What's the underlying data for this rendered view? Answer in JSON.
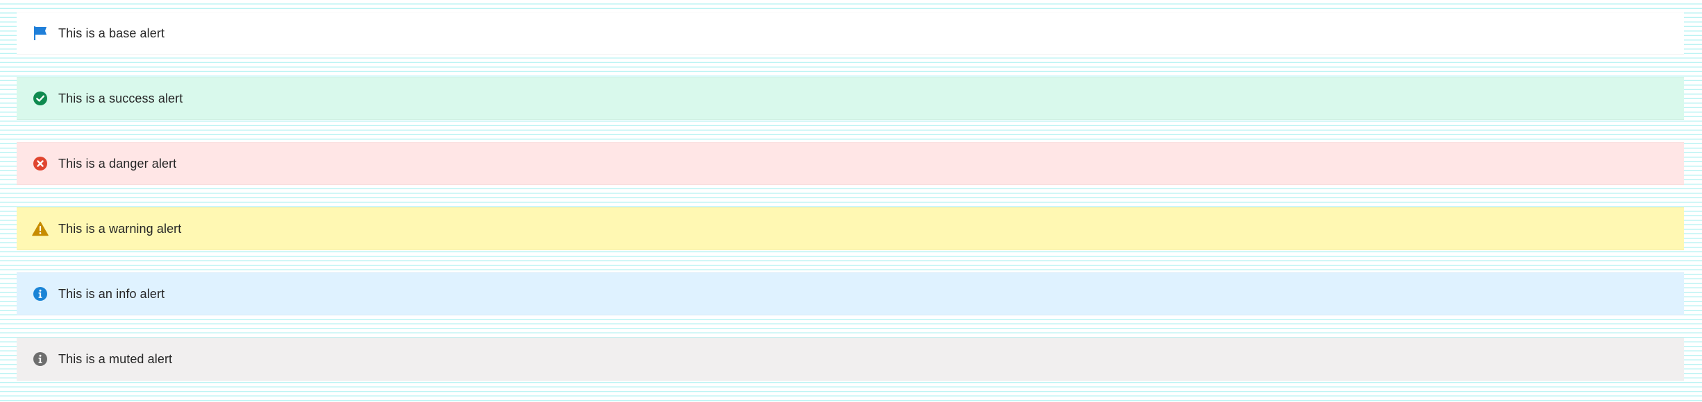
{
  "alerts": [
    {
      "id": "base",
      "icon": "flag-icon",
      "text": "This is a base alert",
      "bg": "#ffffff",
      "icon_color": "#1f7fd9"
    },
    {
      "id": "success",
      "icon": "check-circle-icon",
      "text": "This is a success alert",
      "bg": "#d9f9ec",
      "icon_color": "#0f8a4f"
    },
    {
      "id": "danger",
      "icon": "x-circle-icon",
      "text": "This is a danger alert",
      "bg": "#ffe6e6",
      "icon_color": "#e0452f"
    },
    {
      "id": "warning",
      "icon": "warning-triangle-icon",
      "text": "This is a warning alert",
      "bg": "#fff8b3",
      "icon_color": "#c78c00"
    },
    {
      "id": "info",
      "icon": "info-circle-icon",
      "text": "This is an info alert",
      "bg": "#dff2ff",
      "icon_color": "#1a84d6"
    },
    {
      "id": "muted",
      "icon": "muted-info-circle-icon",
      "text": "This is a muted alert",
      "bg": "#f1efef",
      "icon_color": "#6e6e6e"
    }
  ]
}
